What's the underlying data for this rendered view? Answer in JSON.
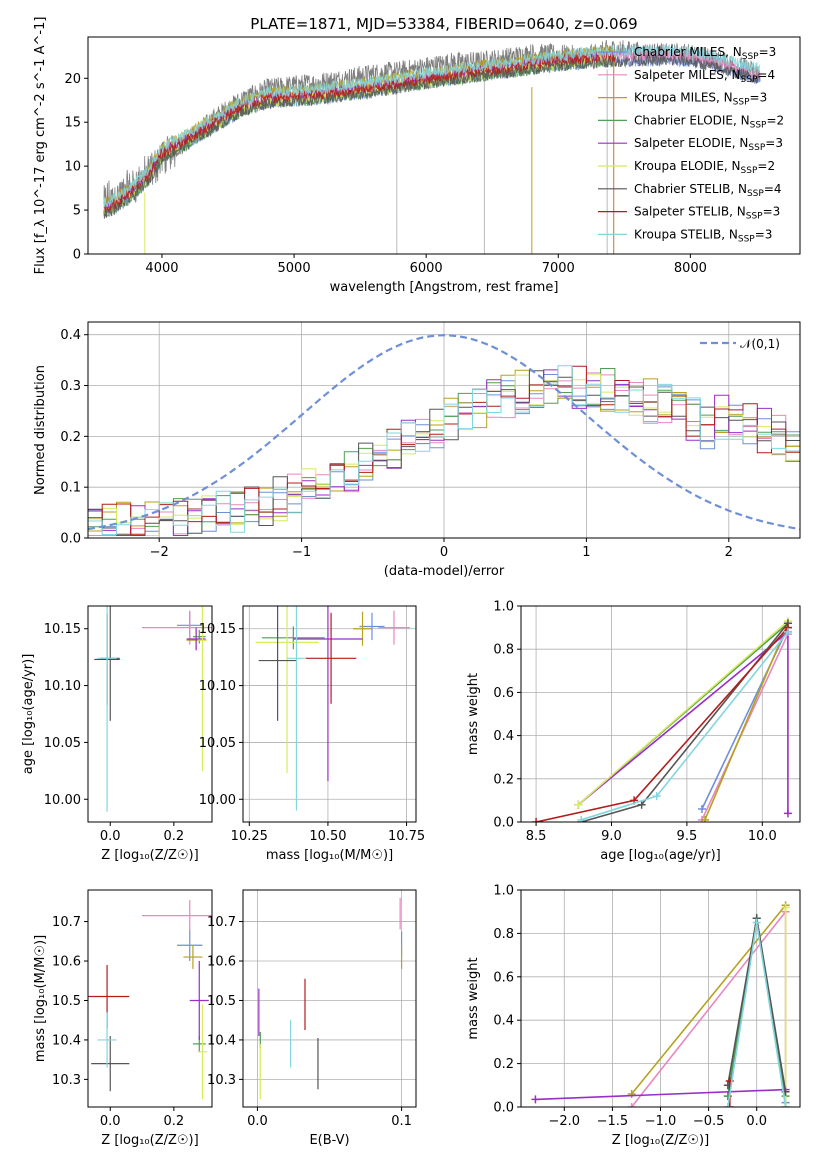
{
  "figure": {
    "title": "PLATE=1871, MJD=53384, FIBERID=0640, z=0.069"
  },
  "models": [
    {
      "name": "Chabrier MILES",
      "nssp": "3",
      "color": "#6f8fd8"
    },
    {
      "name": "Salpeter MILES",
      "nssp": "4",
      "color": "#e887c0"
    },
    {
      "name": "Kroupa MILES",
      "nssp": "3",
      "color": "#b5a21e"
    },
    {
      "name": "Chabrier ELODIE",
      "nssp": "2",
      "color": "#4f9e54"
    },
    {
      "name": "Salpeter ELODIE",
      "nssp": "3",
      "color": "#9a2ec9"
    },
    {
      "name": "Kroupa ELODIE",
      "nssp": "2",
      "color": "#d8ea5e"
    },
    {
      "name": "Chabrier STELIB",
      "nssp": "4",
      "color": "#555555"
    },
    {
      "name": "Salpeter STELIB",
      "nssp": "3",
      "color": "#b41c1c"
    },
    {
      "name": "Kroupa STELIB",
      "nssp": "3",
      "color": "#82d6de"
    }
  ],
  "chart_data": [
    {
      "id": "spectrum",
      "type": "line",
      "xlabel": "wavelength [Angstrom, rest frame]",
      "ylabel": "Flux [f_λ 10^-17 erg cm^-2 s^-1 A^-1]",
      "xlim": [
        3440,
        8830
      ],
      "ylim": [
        0,
        24.7
      ],
      "xticks": [
        4000,
        5000,
        6000,
        7000,
        8000
      ],
      "yticks": [
        0,
        5,
        10,
        15,
        20
      ],
      "grid": false,
      "legend": "top-right",
      "data_continuum": [
        [
          3560,
          6.0
        ],
        [
          3650,
          6.5
        ],
        [
          3800,
          8.0
        ],
        [
          3900,
          9.2
        ],
        [
          4000,
          11.0
        ],
        [
          4200,
          13.0
        ],
        [
          4400,
          15.5
        ],
        [
          4600,
          17.5
        ],
        [
          4800,
          18.8
        ],
        [
          5000,
          19.2
        ],
        [
          5200,
          19.5
        ],
        [
          5400,
          20.0
        ],
        [
          5600,
          20.5
        ],
        [
          5800,
          20.8
        ],
        [
          6000,
          21.3
        ],
        [
          6200,
          21.8
        ],
        [
          6400,
          21.9
        ],
        [
          6600,
          22.3
        ],
        [
          6800,
          22.8
        ],
        [
          7000,
          22.7
        ],
        [
          7200,
          22.5
        ],
        [
          7400,
          23.3
        ],
        [
          7600,
          23.0
        ],
        [
          7800,
          22.8
        ],
        [
          8000,
          22.8
        ],
        [
          8200,
          22.0
        ],
        [
          8400,
          21.2
        ],
        [
          8530,
          20.5
        ]
      ],
      "model_continuum": [
        [
          3560,
          5.2
        ],
        [
          3650,
          5.8
        ],
        [
          3800,
          7.5
        ],
        [
          3900,
          9.0
        ],
        [
          4000,
          11.5
        ],
        [
          4200,
          13.2
        ],
        [
          4400,
          15.0
        ],
        [
          4600,
          16.8
        ],
        [
          4800,
          17.8
        ],
        [
          5000,
          18.0
        ],
        [
          5200,
          18.2
        ],
        [
          5400,
          18.6
        ],
        [
          5600,
          19.0
        ],
        [
          5800,
          19.5
        ],
        [
          6000,
          20.0
        ],
        [
          6200,
          20.4
        ],
        [
          6400,
          20.8
        ],
        [
          6600,
          21.2
        ],
        [
          6800,
          21.6
        ],
        [
          7000,
          22.0
        ],
        [
          7200,
          22.3
        ],
        [
          7400,
          22.5
        ],
        [
          7600,
          22.6
        ],
        [
          7800,
          22.6
        ],
        [
          8000,
          22.5
        ],
        [
          8200,
          21.8
        ],
        [
          8400,
          21.0
        ],
        [
          8530,
          20.5
        ]
      ],
      "model_end_wavelengths": [
        8530,
        8530,
        7430,
        7430,
        7430,
        7430,
        8530,
        7430,
        8530
      ]
    },
    {
      "id": "residual-hist",
      "type": "line",
      "xlabel": "(data-model)/error",
      "ylabel": "Normed distribution",
      "xlim": [
        -2.5,
        2.5
      ],
      "ylim": [
        0,
        0.425
      ],
      "xticks": [
        -2,
        -1,
        0,
        1,
        2
      ],
      "yticks": [
        0.0,
        0.1,
        0.2,
        0.3,
        0.4
      ],
      "grid": true,
      "legend": "top-right",
      "reference_curve": {
        "label": "𝒩(0,1)",
        "color": "#6f8fd8",
        "mean": 0,
        "sd": 1
      },
      "bins": {
        "start": -2.5,
        "width": 0.1
      }
    },
    {
      "id": "age-vs-Z",
      "type": "scatter",
      "xlabel": "Z [log₁₀(Z/Z☉)]",
      "ylabel": "age  [log₁₀(age/yr)]",
      "xlim": [
        -0.07,
        0.32
      ],
      "ylim": [
        9.98,
        10.17
      ],
      "xticks": [
        0.0,
        0.2
      ],
      "yticks": [
        10.0,
        10.05,
        10.1,
        10.15
      ],
      "grid": false,
      "points": [
        {
          "model": 0,
          "x": 0.25,
          "y": 10.153,
          "xerr": 0.04,
          "yerr": 0.012
        },
        {
          "model": 1,
          "x": 0.25,
          "y": 10.151,
          "xerr": 0.15,
          "yerr": 0.015
        },
        {
          "model": 2,
          "x": 0.27,
          "y": 10.14,
          "xerr": 0.03,
          "yerr": 0.008
        },
        {
          "model": 3,
          "x": 0.28,
          "y": 10.143,
          "xerr": 0.02,
          "yerr": 0.006
        },
        {
          "model": 4,
          "x": 0.27,
          "y": 10.141,
          "xerr": 0.03,
          "yerr": 0.01
        },
        {
          "model": 5,
          "x": 0.29,
          "y": 10.14,
          "xerr": 0.015,
          "yerr": 0.115
        },
        {
          "model": 6,
          "x": 0.0,
          "y": 10.124,
          "xerr": 0.03,
          "yerr": 0.055
        },
        {
          "model": 7,
          "x": -0.01,
          "y": 10.123,
          "xerr": 0.04,
          "yerr": 0.04
        },
        {
          "model": 8,
          "x": -0.01,
          "y": 10.124,
          "xerr": 0.03,
          "yerr": 0.135
        }
      ]
    },
    {
      "id": "age-vs-mass",
      "type": "scatter",
      "xlabel": "mass [log₁₀(M/M☉)]",
      "ylabel": "",
      "xlim": [
        10.23,
        10.78
      ],
      "ylim": [
        9.98,
        10.17
      ],
      "xticks": [
        10.25,
        10.5,
        10.75
      ],
      "yticks": [
        10.0,
        10.05,
        10.1,
        10.15
      ],
      "grid": true,
      "points": [
        {
          "model": 0,
          "x": 10.64,
          "y": 10.152,
          "xerr": 0.04,
          "yerr": 0.012
        },
        {
          "model": 1,
          "x": 10.71,
          "y": 10.151,
          "xerr": 0.05,
          "yerr": 0.015
        },
        {
          "model": 2,
          "x": 10.61,
          "y": 10.15,
          "xerr": 0.03,
          "yerr": 0.015
        },
        {
          "model": 3,
          "x": 10.39,
          "y": 10.142,
          "xerr": 0.1,
          "yerr": 0.01
        },
        {
          "model": 4,
          "x": 10.5,
          "y": 10.141,
          "xerr": 0.11,
          "yerr": 0.125
        },
        {
          "model": 5,
          "x": 10.37,
          "y": 10.138,
          "xerr": 0.1,
          "yerr": 0.115
        },
        {
          "model": 6,
          "x": 10.34,
          "y": 10.122,
          "xerr": 0.06,
          "yerr": 0.053
        },
        {
          "model": 7,
          "x": 10.51,
          "y": 10.124,
          "xerr": 0.08,
          "yerr": 0.04
        },
        {
          "model": 8,
          "x": 10.4,
          "y": 10.124,
          "xerr": 0.03,
          "yerr": 0.134
        }
      ]
    },
    {
      "id": "weight-vs-age",
      "type": "line",
      "xlabel": "age  [log₁₀(age/yr)]",
      "ylabel": "mass weight",
      "xlim": [
        8.4,
        10.25
      ],
      "ylim": [
        0,
        1.0
      ],
      "xticks": [
        8.5,
        9.0,
        9.5,
        10.0
      ],
      "yticks": [
        0.0,
        0.2,
        0.4,
        0.6,
        0.8,
        1.0
      ],
      "grid": true,
      "series": [
        {
          "model": 0,
          "x": [
            9.6,
            10.17
          ],
          "y": [
            0.06,
            0.9
          ]
        },
        {
          "model": 1,
          "x": [
            9.6,
            10.17
          ],
          "y": [
            0.01,
            0.87
          ]
        },
        {
          "model": 2,
          "x": [
            9.62,
            10.17
          ],
          "y": [
            0.01,
            0.92
          ]
        },
        {
          "model": 3,
          "x": [
            8.78,
            10.17
          ],
          "y": [
            0.08,
            0.92
          ]
        },
        {
          "model": 4,
          "x": [
            8.78,
            10.17,
            10.17
          ],
          "y": [
            0.08,
            0.88,
            0.04
          ]
        },
        {
          "model": 5,
          "x": [
            8.78,
            10.17
          ],
          "y": [
            0.08,
            0.93
          ]
        },
        {
          "model": 6,
          "x": [
            8.8,
            9.2,
            10.17
          ],
          "y": [
            0.0,
            0.08,
            0.92
          ]
        },
        {
          "model": 7,
          "x": [
            8.5,
            9.15,
            10.17
          ],
          "y": [
            0.0,
            0.1,
            0.9
          ]
        },
        {
          "model": 8,
          "x": [
            8.8,
            9.3,
            10.17
          ],
          "y": [
            0.01,
            0.12,
            0.88
          ]
        }
      ]
    },
    {
      "id": "mass-vs-Z",
      "type": "scatter",
      "xlabel": "Z [log₁₀(Z/Z☉)]",
      "ylabel": "mass [log₁₀(M/M☉)]",
      "xlim": [
        -0.07,
        0.32
      ],
      "ylim": [
        10.23,
        10.78
      ],
      "xticks": [
        0.0,
        0.2
      ],
      "yticks": [
        10.3,
        10.4,
        10.5,
        10.6,
        10.7
      ],
      "grid": false,
      "points": [
        {
          "model": 0,
          "x": 0.25,
          "y": 10.64,
          "xerr": 0.04,
          "yerr": 0.04
        },
        {
          "model": 1,
          "x": 0.25,
          "y": 10.715,
          "xerr": 0.15,
          "yerr": 0.04
        },
        {
          "model": 2,
          "x": 0.26,
          "y": 10.61,
          "xerr": 0.03,
          "yerr": 0.03
        },
        {
          "model": 3,
          "x": 0.28,
          "y": 10.39,
          "xerr": 0.02,
          "yerr": 0.02
        },
        {
          "model": 4,
          "x": 0.28,
          "y": 10.5,
          "xerr": 0.03,
          "yerr": 0.1
        },
        {
          "model": 5,
          "x": 0.29,
          "y": 10.37,
          "xerr": 0.015,
          "yerr": 0.12
        },
        {
          "model": 6,
          "x": 0.0,
          "y": 10.34,
          "xerr": 0.06,
          "yerr": 0.07
        },
        {
          "model": 7,
          "x": -0.01,
          "y": 10.51,
          "xerr": 0.07,
          "yerr": 0.08
        },
        {
          "model": 8,
          "x": -0.01,
          "y": 10.4,
          "xerr": 0.03,
          "yerr": 0.07
        }
      ]
    },
    {
      "id": "mass-vs-ebv",
      "type": "scatter",
      "xlabel": "E(B-V)",
      "ylabel": "",
      "xlim": [
        -0.01,
        0.11
      ],
      "ylim": [
        10.23,
        10.78
      ],
      "xticks": [
        0.0,
        0.1
      ],
      "yticks": [
        10.3,
        10.4,
        10.5,
        10.6,
        10.7
      ],
      "grid": true,
      "points": [
        {
          "model": 0,
          "x": 0.1,
          "y": 10.645,
          "xerr": 0.0,
          "yerr": 0.03
        },
        {
          "model": 1,
          "x": 0.099,
          "y": 10.72,
          "xerr": 0.0,
          "yerr": 0.04
        },
        {
          "model": 2,
          "x": 0.1,
          "y": 10.61,
          "xerr": 0.0,
          "yerr": 0.03
        },
        {
          "model": 3,
          "x": 0.002,
          "y": 10.4,
          "xerr": 0.0,
          "yerr": 0.02
        },
        {
          "model": 4,
          "x": 0.001,
          "y": 10.47,
          "xerr": 0.0,
          "yerr": 0.06
        },
        {
          "model": 5,
          "x": 0.002,
          "y": 10.32,
          "xerr": 0.0,
          "yerr": 0.07
        },
        {
          "model": 6,
          "x": 0.042,
          "y": 10.34,
          "xerr": 0.0,
          "yerr": 0.065
        },
        {
          "model": 7,
          "x": 0.033,
          "y": 10.49,
          "xerr": 0.0,
          "yerr": 0.065
        },
        {
          "model": 8,
          "x": 0.023,
          "y": 10.39,
          "xerr": 0.0,
          "yerr": 0.06
        }
      ]
    },
    {
      "id": "weight-vs-Z",
      "type": "line",
      "xlabel": "Z [log₁₀(Z/Z☉)]",
      "ylabel": "mass weight",
      "xlim": [
        -2.45,
        0.45
      ],
      "ylim": [
        0,
        1.0
      ],
      "xticks": [
        -2.0,
        -1.5,
        -1.0,
        -0.5,
        0.0
      ],
      "yticks": [
        0.0,
        0.2,
        0.4,
        0.6,
        0.8,
        1.0
      ],
      "grid": true,
      "series": [
        {
          "model": 0,
          "x": [
            -0.3,
            0.0,
            0.3
          ],
          "y": [
            0.05,
            0.87,
            0.02
          ]
        },
        {
          "model": 1,
          "x": [
            -1.3,
            0.3,
            0.3
          ],
          "y": [
            0.0,
            0.9,
            0.0
          ]
        },
        {
          "model": 2,
          "x": [
            -1.3,
            0.3
          ],
          "y": [
            0.06,
            0.93
          ]
        },
        {
          "model": 3,
          "x": [
            -0.3,
            0.0,
            0.3
          ],
          "y": [
            0.05,
            0.87,
            0.05
          ]
        },
        {
          "model": 4,
          "x": [
            -2.3,
            0.3
          ],
          "y": [
            0.035,
            0.08
          ]
        },
        {
          "model": 5,
          "x": [
            0.3,
            0.3
          ],
          "y": [
            0.0,
            0.92
          ]
        },
        {
          "model": 6,
          "x": [
            -0.3,
            0.0,
            0.3
          ],
          "y": [
            0.1,
            0.87,
            0.07
          ]
        },
        {
          "model": 7,
          "x": [
            -0.28,
            -0.28
          ],
          "y": [
            0.0,
            0.12
          ]
        },
        {
          "model": 8,
          "x": [
            -0.3,
            0.0,
            0.3
          ],
          "y": [
            0.0,
            0.85,
            0.0
          ]
        }
      ]
    }
  ]
}
